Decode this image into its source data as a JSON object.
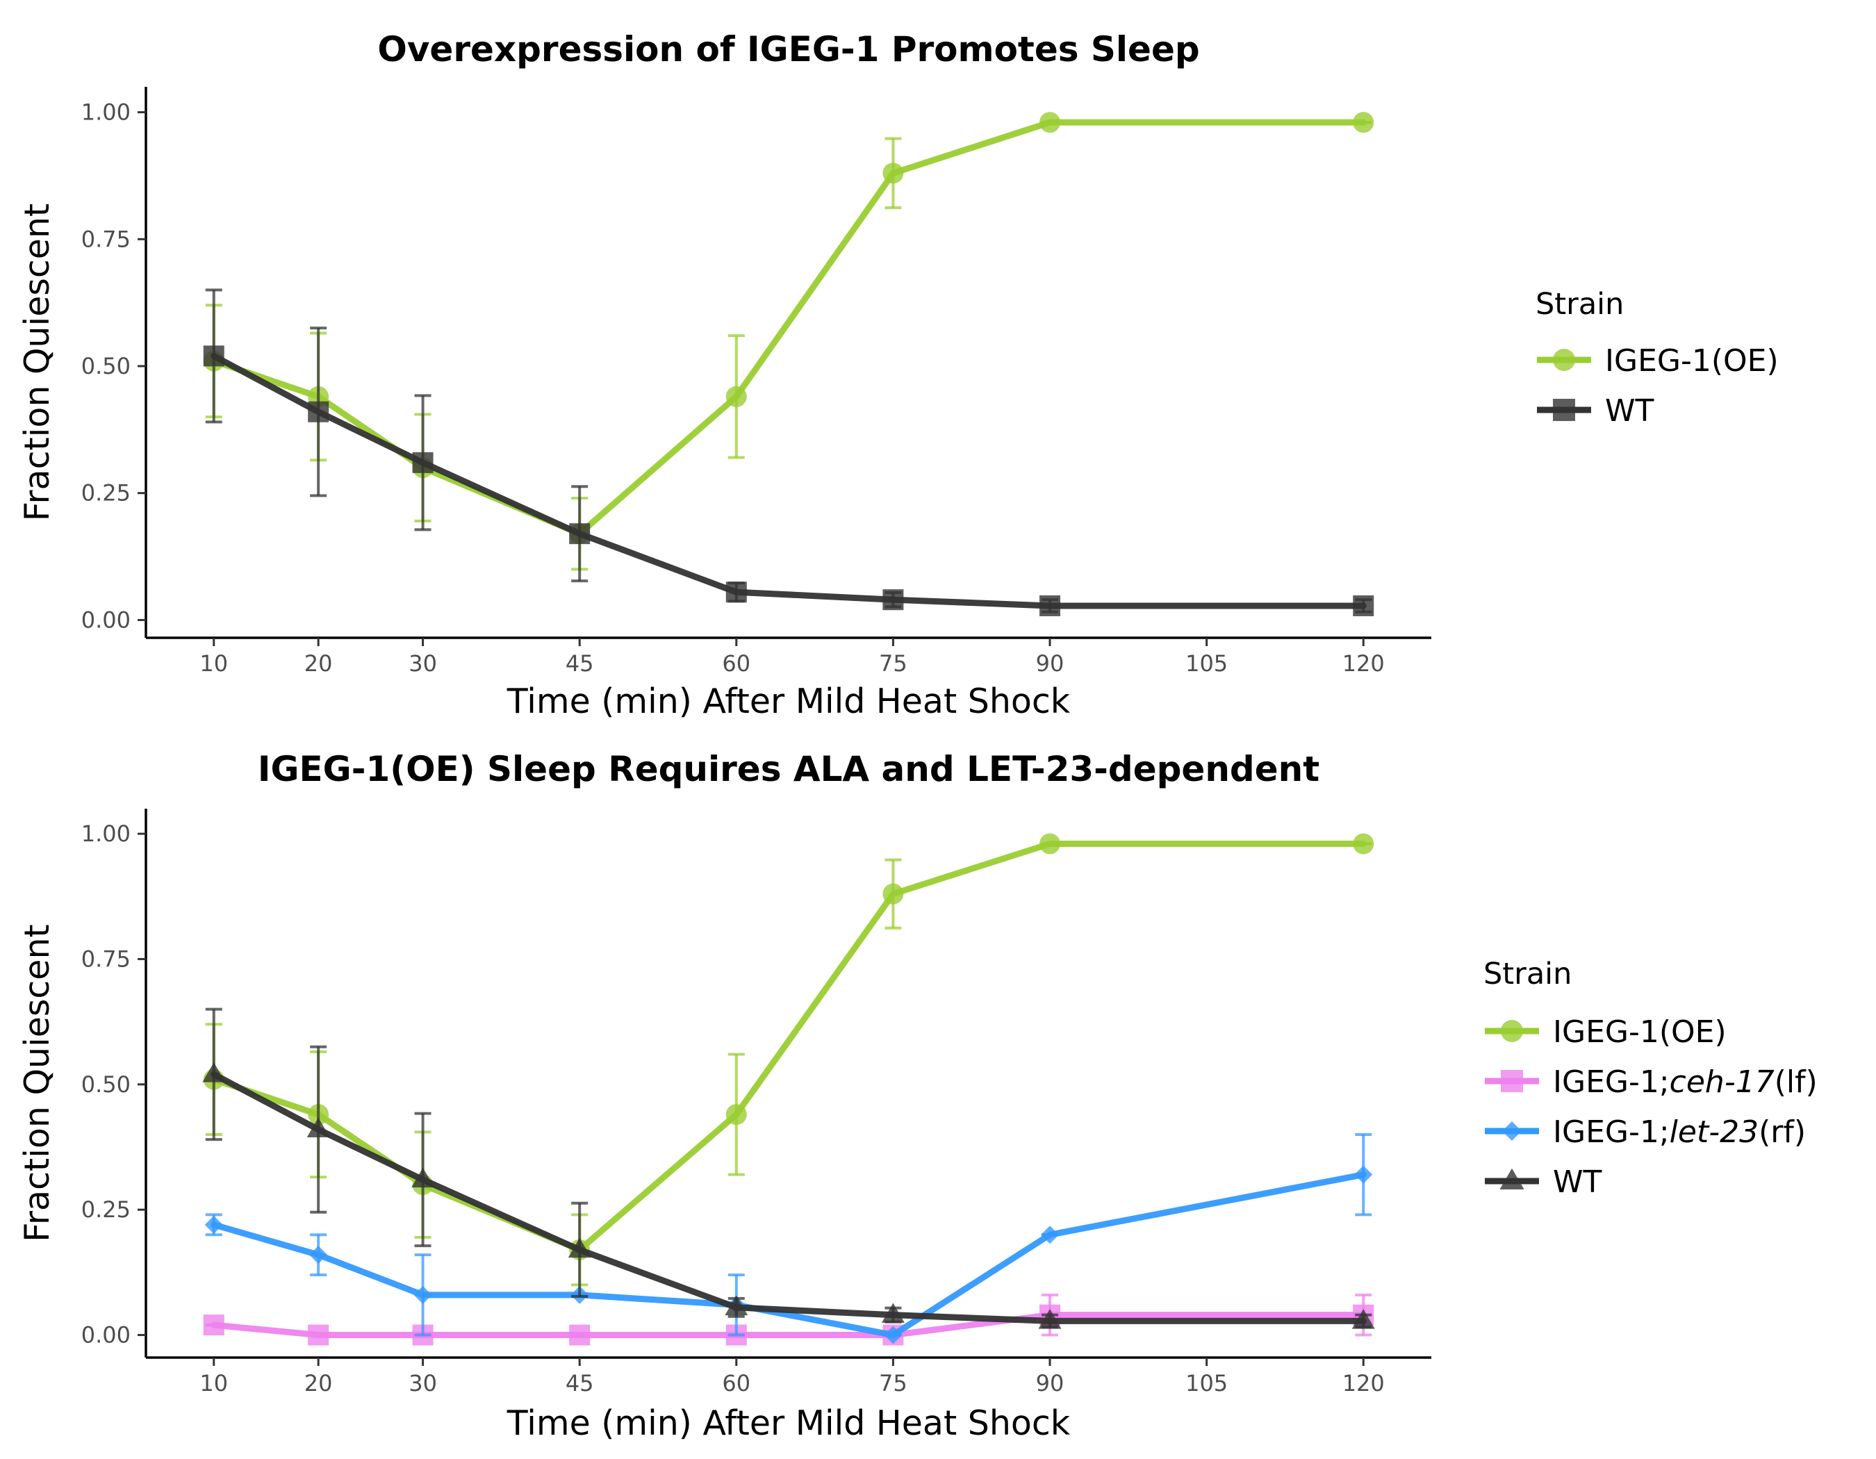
{
  "chart_data": [
    {
      "type": "line",
      "title": "Overexpression of IGEG-1 Promotes Sleep",
      "xlabel": "Time (min) After Mild Heat Shock",
      "ylabel": "Fraction Quiescent",
      "x": [
        10,
        20,
        30,
        45,
        60,
        75,
        90,
        120
      ],
      "x_ticks": [
        "10",
        "20",
        "30",
        "45",
        "60",
        "75",
        "90",
        "105",
        "120"
      ],
      "y_ticks": [
        "0.00",
        "0.25",
        "0.50",
        "0.75",
        "1.00"
      ],
      "ylim": [
        -0.035,
        1.05
      ],
      "xlim": [
        3.5,
        126.5
      ],
      "grid": false,
      "legend_title": "Strain",
      "legend_position": "right",
      "series": [
        {
          "name": "IGEG-1(OE)",
          "name_parts": [
            {
              "text": "IGEG-1(OE)",
              "italic": false
            }
          ],
          "color": "#9acd32",
          "marker": "circle",
          "values": [
            0.51,
            0.44,
            0.3,
            0.17,
            0.44,
            0.88,
            0.98,
            0.98
          ],
          "errors": [
            0.11,
            0.125,
            0.105,
            0.07,
            0.12,
            0.068,
            0.0,
            0.0
          ]
        },
        {
          "name": "WT",
          "name_parts": [
            {
              "text": "WT",
              "italic": false
            }
          ],
          "color": "#333333",
          "marker": "square",
          "values": [
            0.52,
            0.41,
            0.31,
            0.17,
            0.055,
            0.04,
            0.028,
            0.028
          ],
          "errors": [
            0.13,
            0.165,
            0.132,
            0.093,
            0.018,
            0.014,
            0.012,
            0.012
          ]
        }
      ]
    },
    {
      "type": "line",
      "title": "IGEG-1(OE) Sleep Requires ALA and LET-23-dependent",
      "xlabel": "Time (min) After Mild Heat Shock",
      "ylabel": "Fraction Quiescent",
      "x": [
        10,
        20,
        30,
        45,
        60,
        75,
        90,
        120
      ],
      "x_ticks": [
        "10",
        "20",
        "30",
        "45",
        "60",
        "75",
        "90",
        "105",
        "120"
      ],
      "y_ticks": [
        "0.00",
        "0.25",
        "0.50",
        "0.75",
        "1.00"
      ],
      "ylim": [
        -0.045,
        1.05
      ],
      "xlim": [
        3.5,
        126.5
      ],
      "grid": false,
      "legend_title": "Strain",
      "legend_position": "right",
      "series": [
        {
          "name": "IGEG-1(OE)",
          "name_parts": [
            {
              "text": "IGEG-1(OE)",
              "italic": false
            }
          ],
          "color": "#9acd32",
          "marker": "circle",
          "values": [
            0.51,
            0.44,
            0.3,
            0.17,
            0.44,
            0.88,
            0.98,
            0.98
          ],
          "errors": [
            0.11,
            0.125,
            0.105,
            0.07,
            0.12,
            0.068,
            0.0,
            0.0
          ]
        },
        {
          "name": "IGEG-1;ceh-17(lf)",
          "name_parts": [
            {
              "text": "IGEG-1;",
              "italic": false
            },
            {
              "text": "ceh-17",
              "italic": true
            },
            {
              "text": "(lf)",
              "italic": false
            }
          ],
          "color": "#ee82ee",
          "marker": "square",
          "values": [
            0.02,
            0.0,
            0.0,
            0.0,
            0.0,
            0.0,
            0.04,
            0.04
          ],
          "errors": [
            0.0,
            0.0,
            0.0,
            0.0,
            0.0,
            0.0,
            0.04,
            0.04
          ]
        },
        {
          "name": "IGEG-1;let-23(rf)",
          "name_parts": [
            {
              "text": "IGEG-1;",
              "italic": false
            },
            {
              "text": "let-23",
              "italic": true
            },
            {
              "text": "(rf)",
              "italic": false
            }
          ],
          "color": "#3399ff",
          "marker": "diamond",
          "values": [
            0.22,
            0.16,
            0.08,
            0.08,
            0.06,
            0.0,
            0.2,
            0.32
          ],
          "errors": [
            0.02,
            0.04,
            0.08,
            0.0,
            0.06,
            0.0,
            0.0,
            0.08
          ]
        },
        {
          "name": "WT",
          "name_parts": [
            {
              "text": "WT",
              "italic": false
            }
          ],
          "color": "#333333",
          "marker": "triangle",
          "values": [
            0.52,
            0.41,
            0.31,
            0.17,
            0.055,
            0.04,
            0.028,
            0.028
          ],
          "errors": [
            0.13,
            0.165,
            0.132,
            0.093,
            0.018,
            0.014,
            0.012,
            0.012
          ]
        }
      ]
    }
  ]
}
